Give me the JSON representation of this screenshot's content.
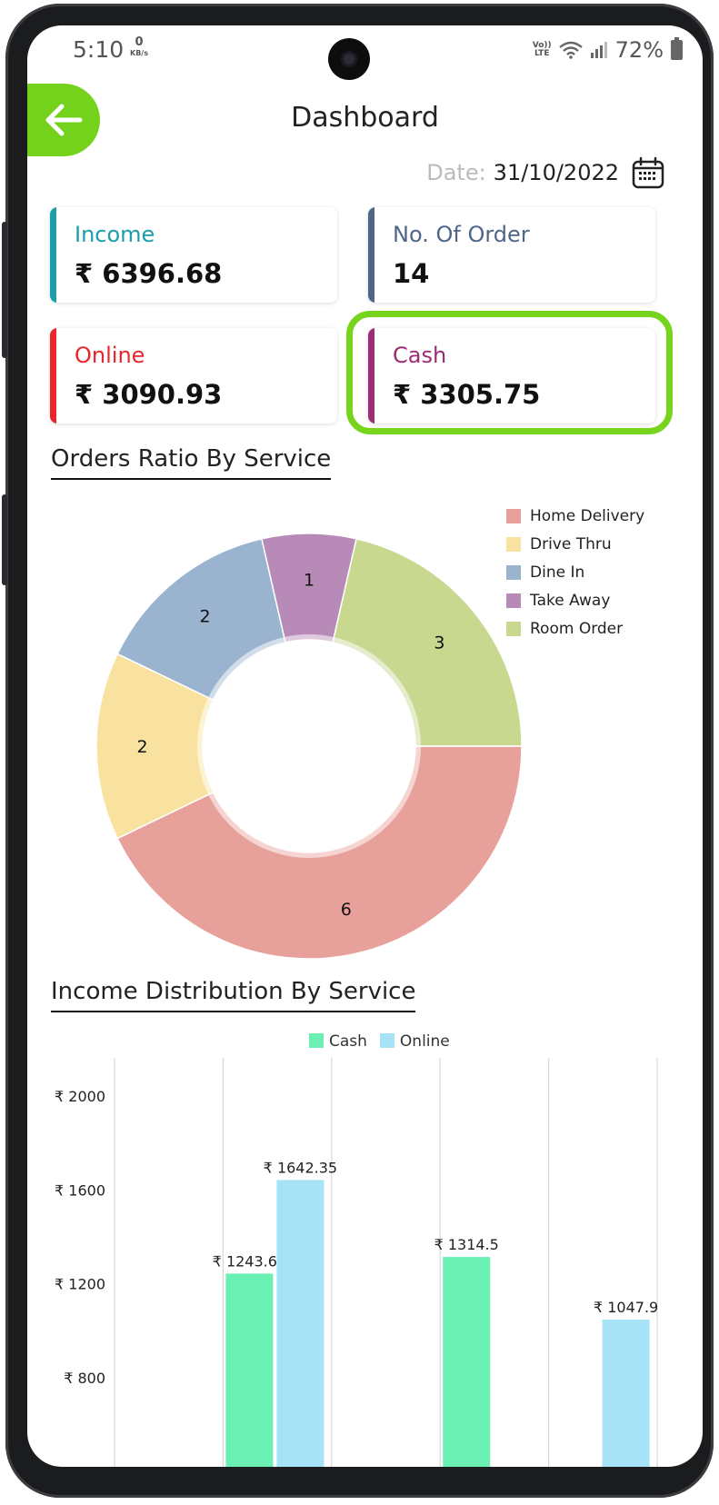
{
  "status": {
    "time": "5:10",
    "kbs_value": "0",
    "kbs_unit": "KB/s",
    "volte_top": "Vo))",
    "volte_bottom": "LTE",
    "battery": "72%"
  },
  "header": {
    "title": "Dashboard",
    "back_icon": "arrow-left-icon"
  },
  "date": {
    "label": "Date:",
    "value": "31/10/2022",
    "icon": "calendar-icon"
  },
  "cards": {
    "income": {
      "label": "Income",
      "value": "₹ 6396.68",
      "color": "#1a9eab"
    },
    "orders": {
      "label": "No. Of Order",
      "value": "14",
      "color": "#4e6688"
    },
    "online": {
      "label": "Online",
      "value": "₹ 3090.93",
      "color": "#e8262b"
    },
    "cash": {
      "label": "Cash",
      "value": "₹ 3305.75",
      "color": "#9c2d74"
    }
  },
  "sections": {
    "orders_ratio": "Orders Ratio By Service",
    "income_dist": "Income Distribution By Service"
  },
  "chart_data": [
    {
      "type": "pie",
      "title": "Orders Ratio By Service",
      "categories": [
        "Home Delivery",
        "Drive Thru",
        "Dine In",
        "Take Away",
        "Room Order"
      ],
      "values": [
        6,
        2,
        2,
        1,
        3
      ],
      "colors": [
        "#e8a19a",
        "#f9e29f",
        "#9ab3cf",
        "#b88ab8",
        "#c8d88f"
      ],
      "legend": "top-right"
    },
    {
      "type": "bar",
      "title": "Income Distribution By Service",
      "series": [
        {
          "name": "Cash",
          "color": "#6bf0b4",
          "values": [
            null,
            1243.65,
            null,
            1314.5,
            null
          ]
        },
        {
          "name": "Online",
          "color": "#a6e3f7",
          "values": [
            null,
            1642.35,
            null,
            null,
            1047.9
          ]
        }
      ],
      "data_labels": {
        "cash": [
          "",
          "₹ 1243.65",
          "",
          "₹ 1314.5",
          ""
        ],
        "online": [
          "",
          "₹ 1642.35",
          "",
          "",
          "₹ 1047.9"
        ]
      },
      "yticks": [
        "₹ 2000",
        "₹ 1600",
        "₹ 1200",
        "₹ 800"
      ],
      "ytick_values": [
        2000,
        1600,
        1200,
        800
      ],
      "grid": "vertical",
      "legend": "top-center"
    }
  ]
}
